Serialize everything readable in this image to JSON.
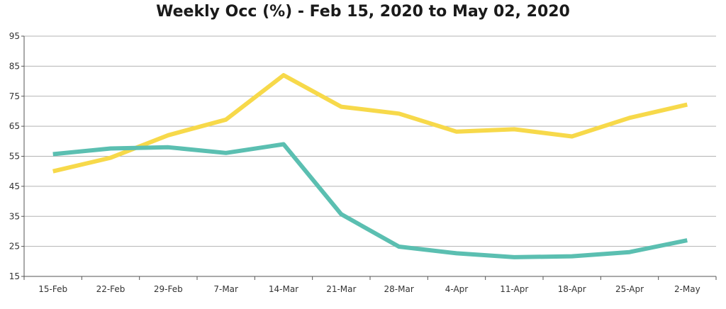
{
  "chart_data": {
    "type": "line",
    "title": "Weekly Occ (%) - Feb 15, 2020 to May 02, 2020",
    "xlabel": "",
    "ylabel": "",
    "categories": [
      "15-Feb",
      "22-Feb",
      "29-Feb",
      "7-Mar",
      "14-Mar",
      "21-Mar",
      "28-Mar",
      "4-Apr",
      "11-Apr",
      "18-Apr",
      "25-Apr",
      "2-May"
    ],
    "ylim": [
      15,
      95
    ],
    "yticks": [
      15,
      25,
      35,
      45,
      55,
      65,
      75,
      85,
      95
    ],
    "grid": "horizontal",
    "legend": "none",
    "series": [
      {
        "values": [
          50.0,
          54.5,
          62.0,
          67.2,
          82.0,
          71.5,
          69.2,
          63.2,
          64.0,
          61.6,
          67.8,
          72.2
        ],
        "color": "#f7d94a"
      },
      {
        "values": [
          55.7,
          57.6,
          58.0,
          56.1,
          59.0,
          35.7,
          24.9,
          22.7,
          21.4,
          21.7,
          23.1,
          27.0
        ],
        "color": "#5bbfb1"
      }
    ]
  }
}
